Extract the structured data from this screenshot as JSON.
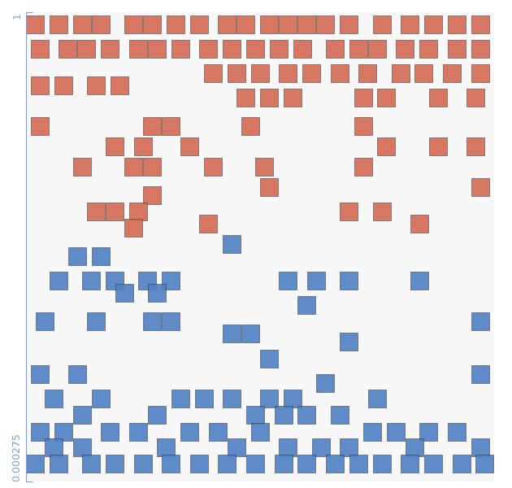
{
  "chart_data": {
    "type": "scatter",
    "marker": "square",
    "tick_labels": "y",
    "xlim": [
      0,
      1
    ],
    "ylim": [
      0.000275,
      1
    ],
    "yticks": [
      0.000275,
      1
    ],
    "series": [
      {
        "color": "#d46a55",
        "x": [
          0.02,
          0.07,
          0.12,
          0.16,
          0.23,
          0.27,
          0.32,
          0.37,
          0.43,
          0.47,
          0.52,
          0.56,
          0.6,
          0.64,
          0.69,
          0.76,
          0.82,
          0.87,
          0.92,
          0.97,
          0.03,
          0.09,
          0.13,
          0.18,
          0.24,
          0.28,
          0.33,
          0.39,
          0.44,
          0.49,
          0.54,
          0.59,
          0.66,
          0.71,
          0.75,
          0.81,
          0.86,
          0.92,
          0.97,
          0.4,
          0.45,
          0.5,
          0.56,
          0.61,
          0.67,
          0.73,
          0.8,
          0.85,
          0.91,
          0.97,
          0.03,
          0.08,
          0.15,
          0.2,
          0.47,
          0.52,
          0.57,
          0.72,
          0.77,
          0.88,
          0.96,
          0.03,
          0.27,
          0.31,
          0.48,
          0.72,
          0.19,
          0.25,
          0.35,
          0.77,
          0.88,
          0.96,
          0.12,
          0.23,
          0.27,
          0.4,
          0.51,
          0.72,
          0.52,
          0.97,
          0.27,
          0.15,
          0.19,
          0.24,
          0.69,
          0.76,
          0.39,
          0.84,
          0.23
        ],
        "values": [
          0.974,
          0.974,
          0.974,
          0.974,
          0.974,
          0.974,
          0.974,
          0.974,
          0.974,
          0.974,
          0.974,
          0.974,
          0.974,
          0.974,
          0.974,
          0.974,
          0.974,
          0.974,
          0.974,
          0.974,
          0.922,
          0.922,
          0.922,
          0.922,
          0.922,
          0.922,
          0.922,
          0.922,
          0.922,
          0.922,
          0.922,
          0.922,
          0.922,
          0.922,
          0.922,
          0.922,
          0.922,
          0.922,
          0.922,
          0.87,
          0.87,
          0.87,
          0.87,
          0.87,
          0.87,
          0.87,
          0.87,
          0.87,
          0.87,
          0.87,
          0.844,
          0.844,
          0.844,
          0.844,
          0.818,
          0.818,
          0.818,
          0.818,
          0.818,
          0.818,
          0.818,
          0.757,
          0.757,
          0.757,
          0.757,
          0.757,
          0.714,
          0.714,
          0.714,
          0.714,
          0.714,
          0.714,
          0.671,
          0.671,
          0.671,
          0.671,
          0.671,
          0.671,
          0.627,
          0.627,
          0.61,
          0.575,
          0.575,
          0.575,
          0.575,
          0.575,
          0.549,
          0.549,
          0.541
        ]
      },
      {
        "color": "#4f7fc4",
        "x": [
          0.44,
          0.11,
          0.16,
          0.07,
          0.14,
          0.19,
          0.26,
          0.31,
          0.56,
          0.62,
          0.69,
          0.84,
          0.21,
          0.28,
          0.6,
          0.04,
          0.15,
          0.27,
          0.31,
          0.97,
          0.44,
          0.48,
          0.69,
          0.52,
          0.03,
          0.11,
          0.97,
          0.64,
          0.06,
          0.16,
          0.33,
          0.38,
          0.44,
          0.52,
          0.57,
          0.75,
          0.12,
          0.28,
          0.49,
          0.55,
          0.6,
          0.67,
          0.03,
          0.08,
          0.18,
          0.24,
          0.35,
          0.41,
          0.5,
          0.74,
          0.79,
          0.86,
          0.92,
          0.06,
          0.12,
          0.3,
          0.45,
          0.56,
          0.63,
          0.69,
          0.83,
          0.97,
          0.02,
          0.07,
          0.14,
          0.19,
          0.25,
          0.31,
          0.37,
          0.43,
          0.49,
          0.55,
          0.6,
          0.66,
          0.71,
          0.76,
          0.82,
          0.87,
          0.93,
          0.98
        ],
        "values": [
          0.506,
          0.48,
          0.48,
          0.428,
          0.428,
          0.428,
          0.428,
          0.428,
          0.428,
          0.428,
          0.428,
          0.428,
          0.402,
          0.402,
          0.376,
          0.341,
          0.341,
          0.341,
          0.341,
          0.341,
          0.315,
          0.315,
          0.298,
          0.263,
          0.229,
          0.229,
          0.229,
          0.211,
          0.177,
          0.177,
          0.177,
          0.177,
          0.177,
          0.177,
          0.177,
          0.177,
          0.142,
          0.142,
          0.142,
          0.142,
          0.142,
          0.142,
          0.107,
          0.107,
          0.107,
          0.107,
          0.107,
          0.107,
          0.107,
          0.107,
          0.107,
          0.107,
          0.107,
          0.073,
          0.073,
          0.073,
          0.073,
          0.073,
          0.073,
          0.073,
          0.073,
          0.073,
          0.038,
          0.038,
          0.038,
          0.038,
          0.038,
          0.038,
          0.038,
          0.038,
          0.038,
          0.038,
          0.038,
          0.038,
          0.038,
          0.038,
          0.038,
          0.038,
          0.038,
          0.038
        ]
      }
    ]
  }
}
